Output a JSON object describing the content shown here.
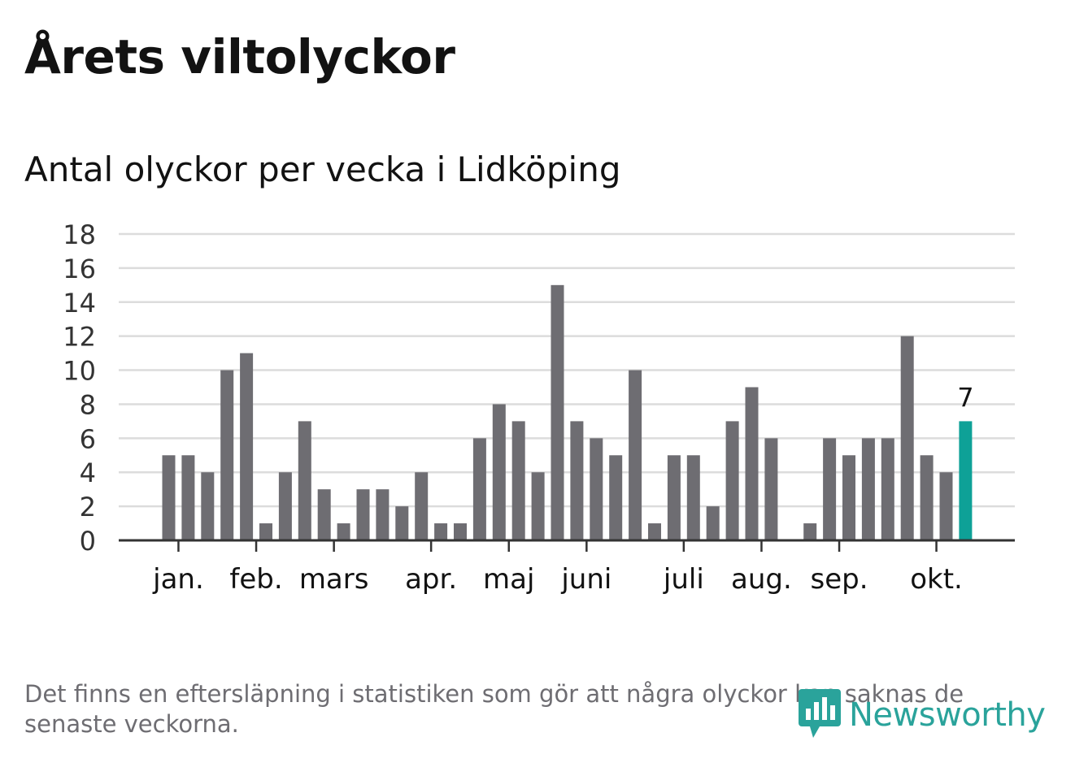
{
  "header": {
    "title": "Årets viltolyckor",
    "subtitle": "Antal olyckor per vecka i Lidköping"
  },
  "footer": {
    "note": "Det finns en eftersläpning i statistiken som gör att några olyckor kan saknas de senaste veckorna.",
    "brand": "Newsworthy"
  },
  "colors": {
    "bar": "#6e6d72",
    "highlight": "#0ea197",
    "grid": "#dcdcdc",
    "axis": "#333333",
    "text": "#121212",
    "muted": "#6e6d72",
    "brand": "#2aa39b"
  },
  "chart_data": {
    "type": "bar",
    "title": "Antal olyckor per vecka i Lidköping",
    "xlabel": "",
    "ylabel": "",
    "ylim": [
      0,
      18
    ],
    "yticks": [
      0,
      2,
      4,
      6,
      8,
      10,
      12,
      14,
      16,
      18
    ],
    "grid": true,
    "series": [
      {
        "name": "Antal olyckor",
        "values": [
          5,
          5,
          4,
          10,
          11,
          1,
          4,
          7,
          3,
          1,
          3,
          3,
          2,
          4,
          1,
          1,
          6,
          8,
          7,
          4,
          15,
          7,
          6,
          5,
          10,
          1,
          5,
          5,
          2,
          7,
          9,
          6,
          0,
          1,
          6,
          5,
          6,
          6,
          12,
          5,
          4,
          7
        ]
      }
    ],
    "highlight_index": 41,
    "highlight_label": "7",
    "month_labels": [
      {
        "label": "jan.",
        "week": 0.5
      },
      {
        "label": "feb.",
        "week": 4.5
      },
      {
        "label": "mars",
        "week": 8.5
      },
      {
        "label": "apr.",
        "week": 13.5
      },
      {
        "label": "maj",
        "week": 17.5
      },
      {
        "label": "juni",
        "week": 21.5
      },
      {
        "label": "juli",
        "week": 26.5
      },
      {
        "label": "aug.",
        "week": 30.5
      },
      {
        "label": "sep.",
        "week": 34.5
      },
      {
        "label": "okt.",
        "week": 39.5
      }
    ]
  }
}
